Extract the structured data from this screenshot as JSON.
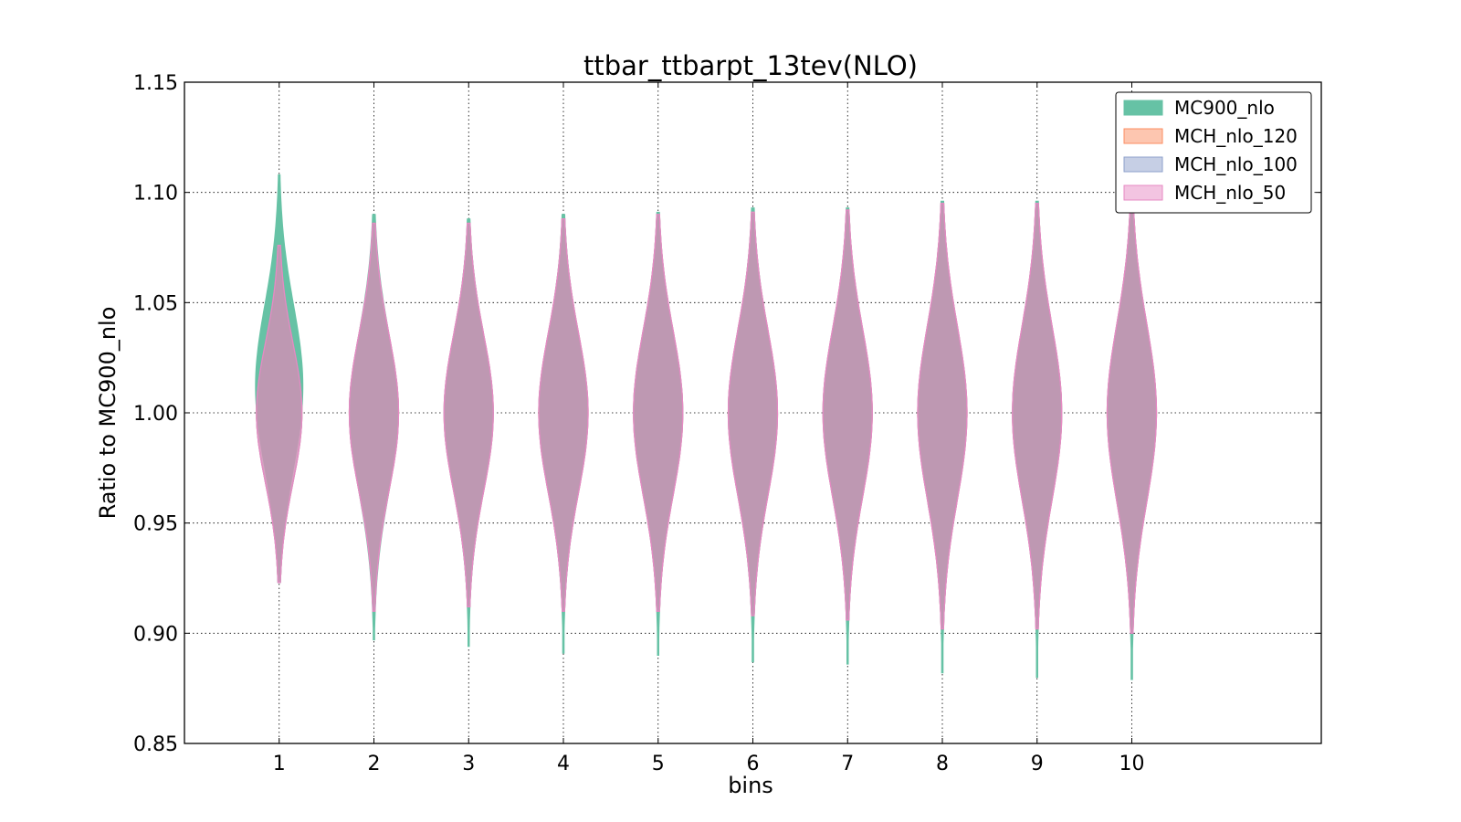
{
  "chart_data": {
    "type": "violin",
    "title": "ttbar_ttbarpt_13tev(NLO)",
    "xlabel": "bins",
    "ylabel": "Ratio to MC900_nlo",
    "xlim": [
      0,
      12
    ],
    "ylim": [
      0.85,
      1.15
    ],
    "x_ticks": [
      1,
      2,
      3,
      4,
      5,
      6,
      7,
      8,
      9,
      10
    ],
    "x_tick_labels": [
      "1",
      "2",
      "3",
      "4",
      "5",
      "6",
      "7",
      "8",
      "9",
      "10"
    ],
    "y_ticks": [
      0.85,
      0.9,
      0.95,
      1.0,
      1.05,
      1.1,
      1.15
    ],
    "y_tick_labels": [
      "0.85",
      "0.90",
      "0.95",
      "1.00",
      "1.05",
      "1.10",
      "1.15"
    ],
    "grid": true,
    "legend_position": "top-right",
    "series": [
      {
        "name": "MC900_nlo",
        "color": "#66c2a5",
        "style": "filled",
        "violins": [
          {
            "bin": 1,
            "center": 1.012,
            "min": 0.923,
            "max": 1.108,
            "half_width": 0.25
          },
          {
            "bin": 2,
            "center": 1.0,
            "min": 0.897,
            "max": 1.09,
            "half_width": 0.25
          },
          {
            "bin": 3,
            "center": 1.0,
            "min": 0.894,
            "max": 1.088,
            "half_width": 0.25
          },
          {
            "bin": 4,
            "center": 1.0,
            "min": 0.891,
            "max": 1.09,
            "half_width": 0.25
          },
          {
            "bin": 5,
            "center": 1.0,
            "min": 0.89,
            "max": 1.091,
            "half_width": 0.25
          },
          {
            "bin": 6,
            "center": 1.0,
            "min": 0.887,
            "max": 1.093,
            "half_width": 0.25
          },
          {
            "bin": 7,
            "center": 1.0,
            "min": 0.886,
            "max": 1.093,
            "half_width": 0.25
          },
          {
            "bin": 8,
            "center": 1.0,
            "min": 0.882,
            "max": 1.096,
            "half_width": 0.25
          },
          {
            "bin": 9,
            "center": 1.0,
            "min": 0.88,
            "max": 1.096,
            "half_width": 0.25
          },
          {
            "bin": 10,
            "center": 1.0,
            "min": 0.879,
            "max": 1.098,
            "half_width": 0.25
          }
        ]
      },
      {
        "name": "MCH_nlo_120",
        "color": "#fc8d62",
        "style": "filled",
        "violins": [
          {
            "bin": 1,
            "center": 1.0,
            "min": 0.923,
            "max": 1.076,
            "half_width": 0.24
          },
          {
            "bin": 2,
            "center": 1.0,
            "min": 0.91,
            "max": 1.086,
            "half_width": 0.26
          },
          {
            "bin": 3,
            "center": 1.0,
            "min": 0.912,
            "max": 1.086,
            "half_width": 0.26
          },
          {
            "bin": 4,
            "center": 1.0,
            "min": 0.91,
            "max": 1.088,
            "half_width": 0.26
          },
          {
            "bin": 5,
            "center": 1.0,
            "min": 0.91,
            "max": 1.09,
            "half_width": 0.26
          },
          {
            "bin": 6,
            "center": 1.0,
            "min": 0.908,
            "max": 1.091,
            "half_width": 0.26
          },
          {
            "bin": 7,
            "center": 1.0,
            "min": 0.906,
            "max": 1.092,
            "half_width": 0.26
          },
          {
            "bin": 8,
            "center": 1.0,
            "min": 0.902,
            "max": 1.095,
            "half_width": 0.26
          },
          {
            "bin": 9,
            "center": 1.0,
            "min": 0.902,
            "max": 1.095,
            "half_width": 0.26
          },
          {
            "bin": 10,
            "center": 1.0,
            "min": 0.9,
            "max": 1.097,
            "half_width": 0.26
          }
        ]
      },
      {
        "name": "MCH_nlo_100",
        "color": "#8da0cb",
        "style": "filled",
        "violins": [
          {
            "bin": 1,
            "center": 1.0,
            "min": 0.923,
            "max": 1.076,
            "half_width": 0.24
          },
          {
            "bin": 2,
            "center": 1.0,
            "min": 0.91,
            "max": 1.086,
            "half_width": 0.26
          },
          {
            "bin": 3,
            "center": 1.0,
            "min": 0.912,
            "max": 1.086,
            "half_width": 0.26
          },
          {
            "bin": 4,
            "center": 1.0,
            "min": 0.91,
            "max": 1.088,
            "half_width": 0.26
          },
          {
            "bin": 5,
            "center": 1.0,
            "min": 0.91,
            "max": 1.09,
            "half_width": 0.26
          },
          {
            "bin": 6,
            "center": 1.0,
            "min": 0.908,
            "max": 1.091,
            "half_width": 0.26
          },
          {
            "bin": 7,
            "center": 1.0,
            "min": 0.906,
            "max": 1.092,
            "half_width": 0.26
          },
          {
            "bin": 8,
            "center": 1.0,
            "min": 0.902,
            "max": 1.095,
            "half_width": 0.26
          },
          {
            "bin": 9,
            "center": 1.0,
            "min": 0.902,
            "max": 1.095,
            "half_width": 0.26
          },
          {
            "bin": 10,
            "center": 1.0,
            "min": 0.9,
            "max": 1.097,
            "half_width": 0.26
          }
        ]
      },
      {
        "name": "MCH_nlo_50",
        "color": "#e78ac3",
        "style": "filled",
        "violins": [
          {
            "bin": 1,
            "center": 1.0,
            "min": 0.923,
            "max": 1.076,
            "half_width": 0.24
          },
          {
            "bin": 2,
            "center": 1.0,
            "min": 0.91,
            "max": 1.086,
            "half_width": 0.26
          },
          {
            "bin": 3,
            "center": 1.0,
            "min": 0.912,
            "max": 1.086,
            "half_width": 0.26
          },
          {
            "bin": 4,
            "center": 1.0,
            "min": 0.91,
            "max": 1.088,
            "half_width": 0.26
          },
          {
            "bin": 5,
            "center": 1.0,
            "min": 0.91,
            "max": 1.09,
            "half_width": 0.26
          },
          {
            "bin": 6,
            "center": 1.0,
            "min": 0.908,
            "max": 1.091,
            "half_width": 0.26
          },
          {
            "bin": 7,
            "center": 1.0,
            "min": 0.906,
            "max": 1.092,
            "half_width": 0.26
          },
          {
            "bin": 8,
            "center": 1.0,
            "min": 0.902,
            "max": 1.095,
            "half_width": 0.26
          },
          {
            "bin": 9,
            "center": 1.0,
            "min": 0.902,
            "max": 1.095,
            "half_width": 0.26
          },
          {
            "bin": 10,
            "center": 1.0,
            "min": 0.9,
            "max": 1.097,
            "half_width": 0.26
          }
        ]
      }
    ]
  }
}
